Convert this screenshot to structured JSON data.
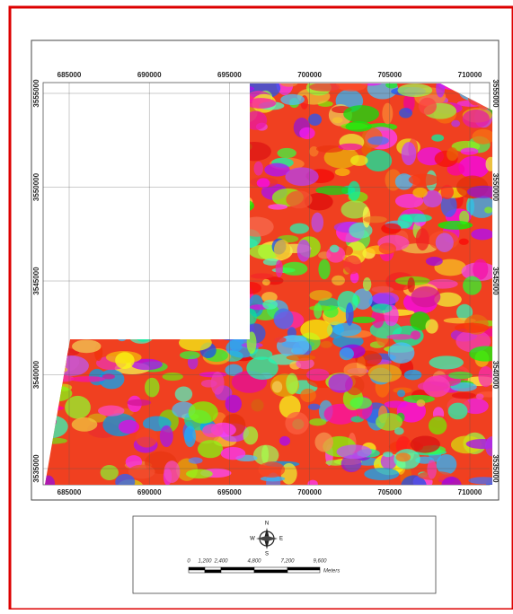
{
  "map": {
    "x_ticks": [
      685000,
      690000,
      695000,
      700000,
      705000,
      710000
    ],
    "y_ticks": [
      3555000,
      3550000,
      3545000,
      3540000,
      3535000
    ],
    "compass": {
      "north": "N",
      "south": "S",
      "east": "E",
      "west": "W"
    },
    "scale_bar": {
      "labels": [
        "0",
        "1,200",
        "2,400",
        "4,800",
        "7,200",
        "9,600"
      ],
      "unit": "Meters"
    }
  }
}
